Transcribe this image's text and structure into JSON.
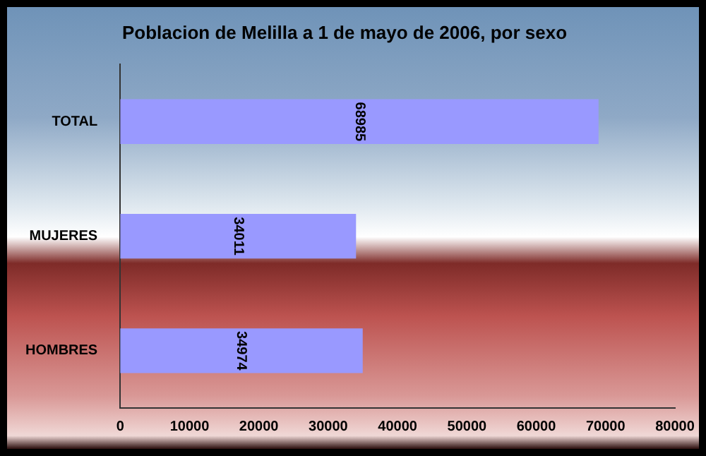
{
  "chart_data": {
    "type": "bar",
    "orientation": "horizontal",
    "title": "Poblacion de Melilla a 1 de mayo de 2006, por sexo",
    "categories": [
      "TOTAL",
      "MUJERES",
      "HOMBRES"
    ],
    "values": [
      68985,
      34011,
      34974
    ],
    "color": "#9999ff",
    "xlim": [
      0,
      80000
    ],
    "xticks": [
      0,
      10000,
      20000,
      30000,
      40000,
      50000,
      60000,
      70000,
      80000
    ],
    "grid": false,
    "legend": false,
    "data_labels": true
  }
}
